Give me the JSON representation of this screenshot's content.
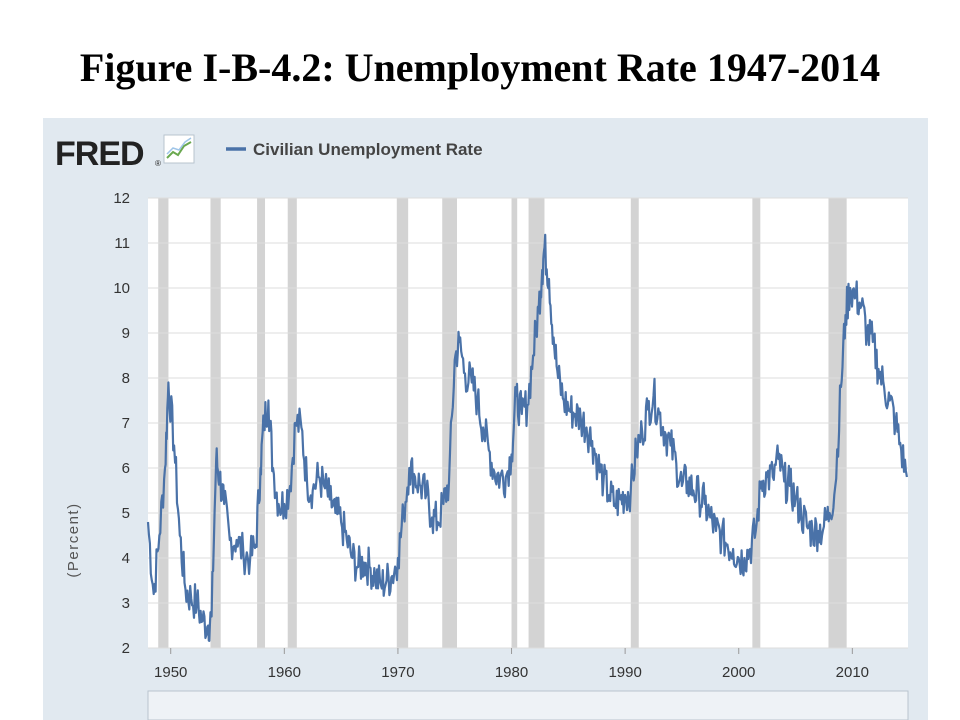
{
  "slide": {
    "title": "Figure I-B-4.2: Unemployment Rate 1947-2014"
  },
  "logo": {
    "text": "FRED",
    "registered": "®"
  },
  "colors": {
    "series": "#4a72a8",
    "recession": "#d3d3d3",
    "panel": "#e1e9f0",
    "plot_bg": "#ffffff",
    "grid": "#dddddd"
  },
  "chart_data": {
    "type": "line",
    "title": "",
    "xlabel": "",
    "ylabel": "(Percent)",
    "xlim": [
      1948,
      2014.9
    ],
    "ylim": [
      2,
      12
    ],
    "yticks": [
      "2",
      "3",
      "4",
      "5",
      "6",
      "7",
      "8",
      "9",
      "10",
      "11",
      "12"
    ],
    "xticks": [
      "1950",
      "1960",
      "1970",
      "1980",
      "1990",
      "2000",
      "2010"
    ],
    "grid": true,
    "legend_position": "top-left",
    "recessions": [
      [
        1948.9,
        1949.8
      ],
      [
        1953.5,
        1954.4
      ],
      [
        1957.6,
        1958.3
      ],
      [
        1960.3,
        1961.1
      ],
      [
        1969.9,
        1970.9
      ],
      [
        1973.9,
        1975.2
      ],
      [
        1980.0,
        1980.5
      ],
      [
        1981.5,
        1982.9
      ],
      [
        1990.5,
        1991.2
      ],
      [
        2001.2,
        2001.9
      ],
      [
        2007.9,
        2009.5
      ]
    ],
    "series": [
      {
        "name": "Civilian Unemployment Rate",
        "x": [
          1948.0,
          1948.5,
          1949.0,
          1949.5,
          1949.8,
          1950.3,
          1950.8,
          1951.3,
          1951.8,
          1952.3,
          1952.8,
          1953.3,
          1953.6,
          1954.0,
          1954.3,
          1954.7,
          1955.2,
          1955.8,
          1956.4,
          1957.0,
          1957.5,
          1957.9,
          1958.2,
          1958.6,
          1959.0,
          1959.5,
          1960.0,
          1960.5,
          1961.0,
          1961.5,
          1962.0,
          1962.5,
          1963.0,
          1963.5,
          1964.0,
          1964.5,
          1965.0,
          1965.5,
          1966.0,
          1966.5,
          1967.0,
          1967.5,
          1968.0,
          1968.5,
          1969.0,
          1969.5,
          1970.0,
          1970.5,
          1971.0,
          1971.5,
          1972.0,
          1972.5,
          1973.0,
          1973.5,
          1974.0,
          1974.5,
          1975.0,
          1975.4,
          1975.9,
          1976.5,
          1977.0,
          1977.5,
          1978.0,
          1978.5,
          1979.0,
          1979.5,
          1980.0,
          1980.4,
          1980.9,
          1981.4,
          1981.9,
          1982.4,
          1982.7,
          1982.9,
          1983.3,
          1983.7,
          1984.1,
          1984.6,
          1985.1,
          1985.6,
          1986.1,
          1986.6,
          1987.1,
          1987.6,
          1988.1,
          1988.6,
          1989.1,
          1989.6,
          1990.0,
          1990.5,
          1991.0,
          1991.5,
          1992.0,
          1992.5,
          1993.0,
          1993.5,
          1994.0,
          1994.5,
          1995.0,
          1995.5,
          1996.0,
          1996.5,
          1997.0,
          1997.5,
          1998.0,
          1998.5,
          1999.0,
          1999.5,
          2000.0,
          2000.5,
          2001.0,
          2001.5,
          2002.0,
          2002.5,
          2003.0,
          2003.5,
          2004.0,
          2004.5,
          2005.0,
          2005.5,
          2006.0,
          2006.5,
          2007.0,
          2007.5,
          2008.0,
          2008.5,
          2009.0,
          2009.4,
          2009.8,
          2010.3,
          2010.8,
          2011.3,
          2011.8,
          2012.3,
          2012.8,
          2013.3,
          2013.8,
          2014.3,
          2014.8
        ],
        "values": [
          4.8,
          3.2,
          4.5,
          6.0,
          7.9,
          6.5,
          4.5,
          3.3,
          3.1,
          3.0,
          2.6,
          2.5,
          2.7,
          6.2,
          5.8,
          5.2,
          4.4,
          4.4,
          4.1,
          4.0,
          4.3,
          6.0,
          7.0,
          7.5,
          6.0,
          5.2,
          5.2,
          5.6,
          7.0,
          6.9,
          5.7,
          5.5,
          5.8,
          5.6,
          5.3,
          5.0,
          4.8,
          4.4,
          4.0,
          3.8,
          3.9,
          3.8,
          3.6,
          3.4,
          3.5,
          3.6,
          4.0,
          5.0,
          6.0,
          5.8,
          5.6,
          5.4,
          4.9,
          4.8,
          5.2,
          5.7,
          8.4,
          8.8,
          8.1,
          7.9,
          7.5,
          6.9,
          6.4,
          5.9,
          5.8,
          5.8,
          6.3,
          7.6,
          7.2,
          7.4,
          8.5,
          9.6,
          10.4,
          10.9,
          10.2,
          8.9,
          8.0,
          7.5,
          7.3,
          7.2,
          7.1,
          6.9,
          6.6,
          6.1,
          5.7,
          5.4,
          5.2,
          5.3,
          5.4,
          5.5,
          6.4,
          6.8,
          7.3,
          7.6,
          7.2,
          6.8,
          6.5,
          6.1,
          5.6,
          5.7,
          5.5,
          5.4,
          5.2,
          4.9,
          4.6,
          4.5,
          4.3,
          4.2,
          4.0,
          4.0,
          4.2,
          4.6,
          5.7,
          5.8,
          5.8,
          6.2,
          5.7,
          5.6,
          5.3,
          5.0,
          4.7,
          4.6,
          4.6,
          4.7,
          5.0,
          5.6,
          7.8,
          9.4,
          10.0,
          9.8,
          9.6,
          9.0,
          8.8,
          8.2,
          7.8,
          7.5,
          7.0,
          6.4,
          5.8
        ]
      }
    ]
  }
}
